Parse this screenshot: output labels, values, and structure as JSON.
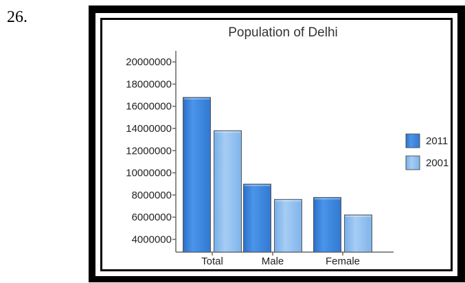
{
  "question_number": "26.",
  "chart_data": {
    "type": "bar",
    "title": "Population of Delhi",
    "categories": [
      "Total",
      "Male",
      "Female"
    ],
    "series": [
      {
        "name": "2011",
        "values": [
          16800000,
          8980000,
          7780000
        ],
        "color": "#3f86e0"
      },
      {
        "name": "2001",
        "values": [
          13800000,
          7600000,
          6200000
        ],
        "color": "#8dbdf0"
      }
    ],
    "yticks": [
      {
        "value": 20000000,
        "label": "20000000"
      },
      {
        "value": 18000000,
        "label": "18000000"
      },
      {
        "value": 16000000,
        "label": "16000000"
      },
      {
        "value": 14000000,
        "label": "14000000"
      },
      {
        "value": 12000000,
        "label": "12000000"
      },
      {
        "value": 10000000,
        "label": "10000000"
      },
      {
        "value": 8000000,
        "label": "8000000"
      },
      {
        "value": 6000000,
        "label": "6000000"
      },
      {
        "value": 4000000,
        "label": "4000000"
      }
    ],
    "ylim": [
      2850000,
      21000000
    ],
    "grid": false,
    "legend_position": "right"
  }
}
